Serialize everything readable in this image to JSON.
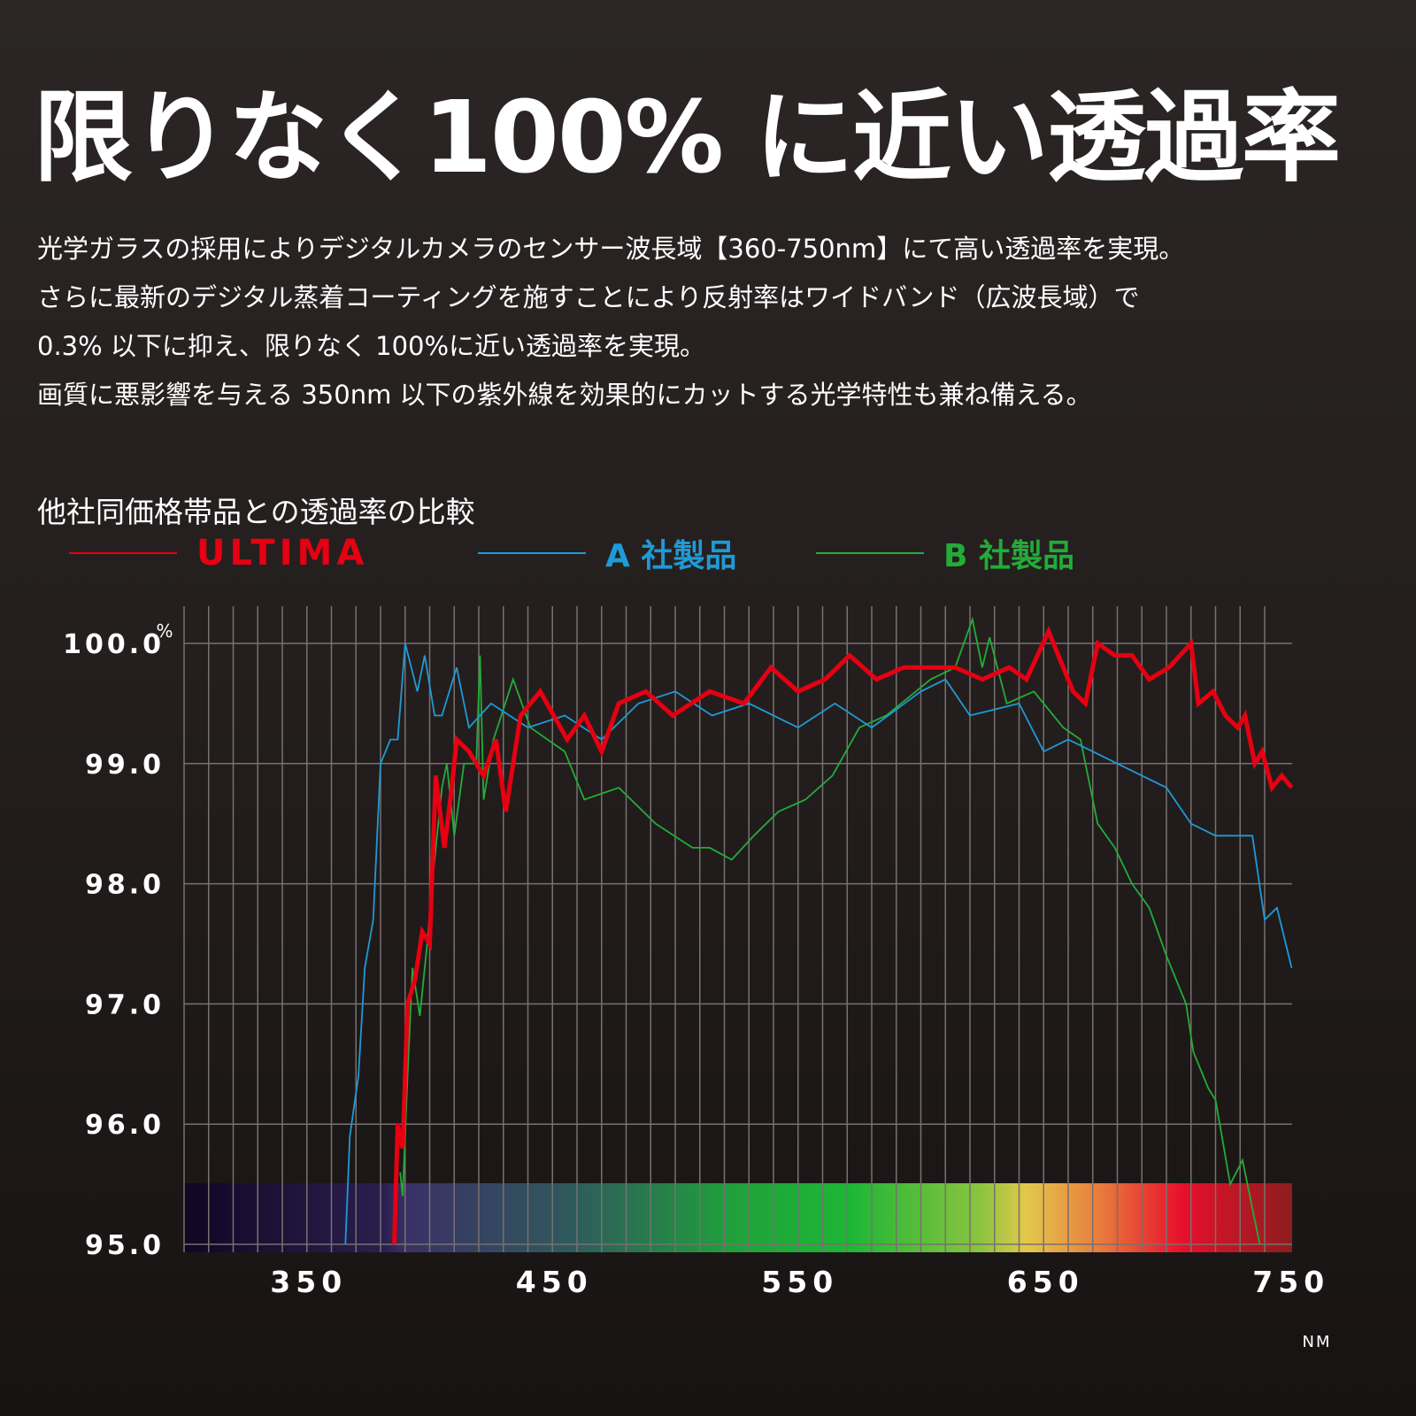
{
  "headline": "限りなく100% に近い透過率",
  "description": [
    "光学ガラスの採用によりデジタルカメラのセンサー波長域【360-750nm】にて高い透過率を実現。",
    "さらに最新のデジタル蒸着コーティングを施すことにより反射率はワイドバンド（広波長域）で",
    "0.3% 以下に抑え、限りなく 100%に近い透過率を実現。",
    "画質に悪影響を与える 350nm 以下の紫外線を効果的にカットする光学特性も兼ね備える。"
  ],
  "chart_data": {
    "type": "line",
    "title": "他社同価格帯品との透過率の比較",
    "ylabel": "%",
    "xlabel": "NM",
    "xlim": [
      300,
      750
    ],
    "ylim": [
      95.0,
      100.3
    ],
    "x_ticks": [
      350,
      450,
      550,
      650,
      750
    ],
    "y_ticks": [
      "95.0",
      "96.0",
      "97.0",
      "98.0",
      "99.0",
      "100.0"
    ],
    "grid": true,
    "legend_position": "top",
    "spectrum_band": true,
    "series": [
      {
        "name": "ULTIMA",
        "color": "#e60012",
        "x": [
          385.6,
          387,
          389,
          391,
          394,
          397,
          400,
          402.5,
          406,
          409,
          411,
          416,
          422,
          427,
          431,
          437,
          445,
          456,
          463,
          470,
          477,
          488,
          499,
          514,
          528,
          539,
          550,
          561,
          571,
          582,
          593,
          604,
          614,
          625,
          636,
          643,
          652,
          662,
          667,
          672,
          679,
          686,
          693,
          701,
          710,
          713,
          719,
          724,
          729,
          732,
          736,
          739,
          743,
          747,
          751
        ],
        "y": [
          95.0,
          96.0,
          95.8,
          97.0,
          97.2,
          97.6,
          97.5,
          98.9,
          98.3,
          98.8,
          99.2,
          99.1,
          98.9,
          99.2,
          98.6,
          99.4,
          99.6,
          99.2,
          99.4,
          99.1,
          99.5,
          99.6,
          99.4,
          99.6,
          99.5,
          99.8,
          99.6,
          99.7,
          99.9,
          99.7,
          99.8,
          99.8,
          99.8,
          99.7,
          99.8,
          99.7,
          100.1,
          99.6,
          99.5,
          100.0,
          99.9,
          99.9,
          99.7,
          99.8,
          100.0,
          99.5,
          99.6,
          99.4,
          99.3,
          99.4,
          99.0,
          99.1,
          98.8,
          98.9,
          98.8
        ]
      },
      {
        "name": "A 社製品",
        "color": "#1e9ad6",
        "x": [
          365.7,
          367.5,
          371,
          373.6,
          377,
          380,
          384,
          387,
          390,
          395,
          398,
          402,
          405,
          411,
          416,
          425,
          440,
          455,
          470,
          485,
          500,
          515,
          530,
          550,
          565,
          580,
          600,
          610,
          620,
          640,
          650,
          660,
          670,
          680,
          690,
          700,
          710,
          720,
          730,
          735,
          740,
          745,
          751
        ],
        "y": [
          95.0,
          95.9,
          96.4,
          97.3,
          97.7,
          99.0,
          99.2,
          99.2,
          100.0,
          99.6,
          99.9,
          99.4,
          99.4,
          99.8,
          99.3,
          99.5,
          99.3,
          99.4,
          99.2,
          99.5,
          99.6,
          99.4,
          99.5,
          99.3,
          99.5,
          99.3,
          99.6,
          99.7,
          99.4,
          99.5,
          99.1,
          99.2,
          99.1,
          99.0,
          98.9,
          98.8,
          98.5,
          98.4,
          98.4,
          98.4,
          97.7,
          97.8,
          97.3
        ]
      },
      {
        "name": "B 社製品",
        "color": "#22ac38",
        "x": [
          388,
          389,
          391,
          393,
          396,
          399,
          401,
          405,
          407,
          410,
          414,
          419,
          420.5,
          422,
          426,
          434,
          441,
          455,
          463,
          477,
          492,
          507,
          514,
          523,
          532,
          542,
          553,
          564,
          575,
          586,
          604,
          614,
          621,
          625,
          628,
          635,
          646,
          658,
          665,
          672,
          679,
          686,
          693,
          700,
          708,
          711,
          717,
          720,
          726,
          731,
          735,
          738
        ],
        "y": [
          95.6,
          95.4,
          96.4,
          97.3,
          96.9,
          97.5,
          98.0,
          98.8,
          99.0,
          98.4,
          99.0,
          99.0,
          99.9,
          98.7,
          99.2,
          99.7,
          99.3,
          99.1,
          98.7,
          98.8,
          98.5,
          98.3,
          98.3,
          98.2,
          98.4,
          98.6,
          98.7,
          98.9,
          99.3,
          99.4,
          99.7,
          99.8,
          100.2,
          99.8,
          100.05,
          99.5,
          99.6,
          99.3,
          99.2,
          98.5,
          98.3,
          98.0,
          97.8,
          97.4,
          97.0,
          96.6,
          96.3,
          96.2,
          95.5,
          95.7,
          95.3,
          95.0
        ]
      }
    ]
  }
}
